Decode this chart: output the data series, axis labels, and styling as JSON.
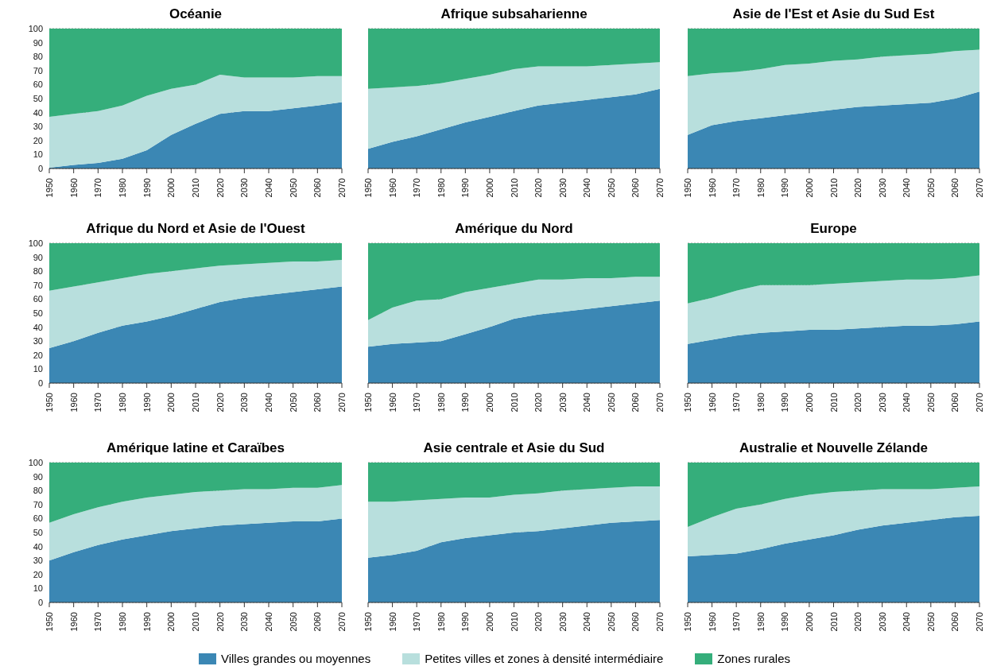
{
  "chart_data": [
    {
      "type": "area",
      "title": "Océanie",
      "stacked": true,
      "x": [
        1950,
        1960,
        1970,
        1980,
        1990,
        2000,
        2010,
        2020,
        2030,
        2040,
        2050,
        2060,
        2070
      ],
      "xlim": [
        1950,
        2070
      ],
      "xticks": [
        1950,
        1960,
        1970,
        1980,
        1990,
        2000,
        2010,
        2020,
        2030,
        2040,
        2050,
        2060,
        2070
      ],
      "ylim": [
        0,
        100
      ],
      "yticks": [
        0,
        10,
        20,
        30,
        40,
        50,
        60,
        70,
        80,
        90,
        100
      ],
      "grid": "y",
      "series": [
        {
          "color": "#3b87b4",
          "values": [
            0.5,
            2.5,
            4,
            7,
            13,
            24,
            32,
            39,
            41,
            41,
            43,
            45,
            47.5
          ]
        },
        {
          "color": "#b8dfdd",
          "values": [
            36.5,
            36.5,
            37,
            38,
            39,
            33,
            28,
            28,
            24,
            24,
            22,
            21,
            18.5
          ]
        },
        {
          "color": "#35ae7b",
          "values": [
            63,
            61,
            59,
            55,
            48,
            43,
            40,
            33,
            35,
            35,
            35,
            34,
            34
          ]
        }
      ]
    },
    {
      "type": "area",
      "title": "Afrique subsaharienne",
      "stacked": true,
      "x": [
        1950,
        1960,
        1970,
        1980,
        1990,
        2000,
        2010,
        2020,
        2030,
        2040,
        2050,
        2060,
        2070
      ],
      "xlim": [
        1950,
        2070
      ],
      "xticks": [
        1950,
        1960,
        1970,
        1980,
        1990,
        2000,
        2010,
        2020,
        2030,
        2040,
        2050,
        2060,
        2070
      ],
      "ylim": [
        0,
        100
      ],
      "yticks": [
        0,
        10,
        20,
        30,
        40,
        50,
        60,
        70,
        80,
        90,
        100
      ],
      "grid": "y",
      "tick_labels": "x",
      "series": [
        {
          "color": "#3b87b4",
          "values": [
            14,
            19,
            23,
            28,
            33,
            37,
            41,
            45,
            47,
            49,
            51,
            53,
            57
          ]
        },
        {
          "color": "#b8dfdd",
          "values": [
            43,
            39,
            36,
            33,
            31,
            30,
            30,
            28,
            26,
            24,
            23,
            22,
            19
          ]
        },
        {
          "color": "#35ae7b",
          "values": [
            43,
            42,
            41,
            39,
            36,
            33,
            29,
            27,
            27,
            27,
            26,
            25,
            24
          ]
        }
      ]
    },
    {
      "type": "area",
      "title": "Asie de l'Est et Asie du Sud Est",
      "stacked": true,
      "x": [
        1950,
        1960,
        1970,
        1980,
        1990,
        2000,
        2010,
        2020,
        2030,
        2040,
        2050,
        2060,
        2070
      ],
      "xlim": [
        1950,
        2070
      ],
      "xticks": [
        1950,
        1960,
        1970,
        1980,
        1990,
        2000,
        2010,
        2020,
        2030,
        2040,
        2050,
        2060,
        2070
      ],
      "ylim": [
        0,
        100
      ],
      "yticks": [
        0,
        10,
        20,
        30,
        40,
        50,
        60,
        70,
        80,
        90,
        100
      ],
      "grid": "y",
      "tick_labels": "x",
      "series": [
        {
          "color": "#3b87b4",
          "values": [
            24,
            31,
            34,
            36,
            38,
            40,
            42,
            44,
            45,
            46,
            47,
            50,
            55
          ]
        },
        {
          "color": "#b8dfdd",
          "values": [
            42,
            37,
            35,
            35,
            36,
            35,
            35,
            34,
            35,
            35,
            35,
            34,
            30
          ]
        },
        {
          "color": "#35ae7b",
          "values": [
            34,
            32,
            31,
            29,
            26,
            25,
            23,
            22,
            20,
            19,
            18,
            16,
            15
          ]
        }
      ]
    },
    {
      "type": "area",
      "title": "Afrique du Nord et Asie de l'Ouest",
      "stacked": true,
      "x": [
        1950,
        1960,
        1970,
        1980,
        1990,
        2000,
        2010,
        2020,
        2030,
        2040,
        2050,
        2060,
        2070
      ],
      "xlim": [
        1950,
        2070
      ],
      "xticks": [
        1950,
        1960,
        1970,
        1980,
        1990,
        2000,
        2010,
        2020,
        2030,
        2040,
        2050,
        2060,
        2070
      ],
      "ylim": [
        0,
        100
      ],
      "yticks": [
        0,
        10,
        20,
        30,
        40,
        50,
        60,
        70,
        80,
        90,
        100
      ],
      "grid": "y",
      "series": [
        {
          "color": "#3b87b4",
          "values": [
            25,
            30,
            36,
            41,
            44,
            48,
            53,
            58,
            61,
            63,
            65,
            67,
            69
          ]
        },
        {
          "color": "#b8dfdd",
          "values": [
            41,
            39,
            36,
            34,
            34,
            32,
            29,
            26,
            24,
            23,
            22,
            20,
            19
          ]
        },
        {
          "color": "#35ae7b",
          "values": [
            34,
            31,
            28,
            25,
            22,
            20,
            18,
            16,
            15,
            14,
            13,
            13,
            12
          ]
        }
      ]
    },
    {
      "type": "area",
      "title": "Amérique du Nord",
      "stacked": true,
      "x": [
        1950,
        1960,
        1970,
        1980,
        1990,
        2000,
        2010,
        2020,
        2030,
        2040,
        2050,
        2060,
        2070
      ],
      "xlim": [
        1950,
        2070
      ],
      "xticks": [
        1950,
        1960,
        1970,
        1980,
        1990,
        2000,
        2010,
        2020,
        2030,
        2040,
        2050,
        2060,
        2070
      ],
      "ylim": [
        0,
        100
      ],
      "yticks": [
        0,
        10,
        20,
        30,
        40,
        50,
        60,
        70,
        80,
        90,
        100
      ],
      "grid": "y",
      "tick_labels": "x",
      "series": [
        {
          "color": "#3b87b4",
          "values": [
            26,
            28,
            29,
            30,
            35,
            40,
            46,
            49,
            51,
            53,
            55,
            57,
            59
          ]
        },
        {
          "color": "#b8dfdd",
          "values": [
            19,
            26,
            30,
            30,
            30,
            28,
            25,
            25,
            23,
            22,
            20,
            19,
            17
          ]
        },
        {
          "color": "#35ae7b",
          "values": [
            55,
            46,
            41,
            40,
            35,
            32,
            29,
            26,
            26,
            25,
            25,
            24,
            24
          ]
        }
      ]
    },
    {
      "type": "area",
      "title": "Europe",
      "stacked": true,
      "x": [
        1950,
        1960,
        1970,
        1980,
        1990,
        2000,
        2010,
        2020,
        2030,
        2040,
        2050,
        2060,
        2070
      ],
      "xlim": [
        1950,
        2070
      ],
      "xticks": [
        1950,
        1960,
        1970,
        1980,
        1990,
        2000,
        2010,
        2020,
        2030,
        2040,
        2050,
        2060,
        2070
      ],
      "ylim": [
        0,
        100
      ],
      "yticks": [
        0,
        10,
        20,
        30,
        40,
        50,
        60,
        70,
        80,
        90,
        100
      ],
      "grid": "y",
      "tick_labels": "x",
      "series": [
        {
          "color": "#3b87b4",
          "values": [
            28,
            31,
            34,
            36,
            37,
            38,
            38,
            39,
            40,
            41,
            41,
            42,
            44
          ]
        },
        {
          "color": "#b8dfdd",
          "values": [
            29,
            30,
            32,
            34,
            33,
            32,
            33,
            33,
            33,
            33,
            33,
            33,
            33
          ]
        },
        {
          "color": "#35ae7b",
          "values": [
            43,
            39,
            34,
            30,
            30,
            30,
            29,
            28,
            27,
            26,
            26,
            25,
            23
          ]
        }
      ]
    },
    {
      "type": "area",
      "title": "Amérique latine et Caraïbes",
      "stacked": true,
      "x": [
        1950,
        1960,
        1970,
        1980,
        1990,
        2000,
        2010,
        2020,
        2030,
        2040,
        2050,
        2060,
        2070
      ],
      "xlim": [
        1950,
        2070
      ],
      "xticks": [
        1950,
        1960,
        1970,
        1980,
        1990,
        2000,
        2010,
        2020,
        2030,
        2040,
        2050,
        2060,
        2070
      ],
      "ylim": [
        0,
        100
      ],
      "yticks": [
        0,
        10,
        20,
        30,
        40,
        50,
        60,
        70,
        80,
        90,
        100
      ],
      "grid": "y",
      "series": [
        {
          "color": "#3b87b4",
          "values": [
            30,
            36,
            41,
            45,
            48,
            51,
            53,
            55,
            56,
            57,
            58,
            58,
            60
          ]
        },
        {
          "color": "#b8dfdd",
          "values": [
            27,
            27,
            27,
            27,
            27,
            26,
            26,
            25,
            25,
            24,
            24,
            24,
            24
          ]
        },
        {
          "color": "#35ae7b",
          "values": [
            43,
            37,
            32,
            28,
            25,
            23,
            21,
            20,
            19,
            19,
            18,
            18,
            16
          ]
        }
      ]
    },
    {
      "type": "area",
      "title": "Asie centrale et Asie du Sud",
      "stacked": true,
      "x": [
        1950,
        1960,
        1970,
        1980,
        1990,
        2000,
        2010,
        2020,
        2030,
        2040,
        2050,
        2060,
        2070
      ],
      "xlim": [
        1950,
        2070
      ],
      "xticks": [
        1950,
        1960,
        1970,
        1980,
        1990,
        2000,
        2010,
        2020,
        2030,
        2040,
        2050,
        2060,
        2070
      ],
      "ylim": [
        0,
        100
      ],
      "yticks": [
        0,
        10,
        20,
        30,
        40,
        50,
        60,
        70,
        80,
        90,
        100
      ],
      "grid": "y",
      "tick_labels": "x",
      "legend": "bottom",
      "series": [
        {
          "name": "Villes grandes ou moyennes",
          "color": "#3b87b4",
          "values": [
            32,
            34,
            37,
            43,
            46,
            48,
            50,
            51,
            53,
            55,
            57,
            58,
            59
          ]
        },
        {
          "name": "Petites villes et zones à densité intermédiaire",
          "color": "#b8dfdd",
          "values": [
            40,
            38,
            36,
            31,
            29,
            27,
            27,
            27,
            27,
            26,
            25,
            25,
            24
          ]
        },
        {
          "name": "Zones rurales",
          "color": "#35ae7b",
          "values": [
            28,
            28,
            27,
            26,
            25,
            25,
            23,
            22,
            20,
            19,
            18,
            17,
            17
          ]
        }
      ]
    },
    {
      "type": "area",
      "title": "Australie et Nouvelle Zélande",
      "stacked": true,
      "x": [
        1950,
        1960,
        1970,
        1980,
        1990,
        2000,
        2010,
        2020,
        2030,
        2040,
        2050,
        2060,
        2070
      ],
      "xlim": [
        1950,
        2070
      ],
      "xticks": [
        1950,
        1960,
        1970,
        1980,
        1990,
        2000,
        2010,
        2020,
        2030,
        2040,
        2050,
        2060,
        2070
      ],
      "ylim": [
        0,
        100
      ],
      "yticks": [
        0,
        10,
        20,
        30,
        40,
        50,
        60,
        70,
        80,
        90,
        100
      ],
      "grid": "y",
      "tick_labels": "x",
      "series": [
        {
          "color": "#3b87b4",
          "values": [
            33,
            34,
            35,
            38,
            42,
            45,
            48,
            52,
            55,
            57,
            59,
            61,
            62
          ]
        },
        {
          "color": "#b8dfdd",
          "values": [
            21,
            27,
            32,
            32,
            32,
            32,
            31,
            28,
            26,
            24,
            22,
            21,
            21
          ]
        },
        {
          "color": "#35ae7b",
          "values": [
            46,
            39,
            33,
            30,
            26,
            23,
            21,
            20,
            19,
            19,
            19,
            18,
            17
          ]
        }
      ]
    }
  ]
}
